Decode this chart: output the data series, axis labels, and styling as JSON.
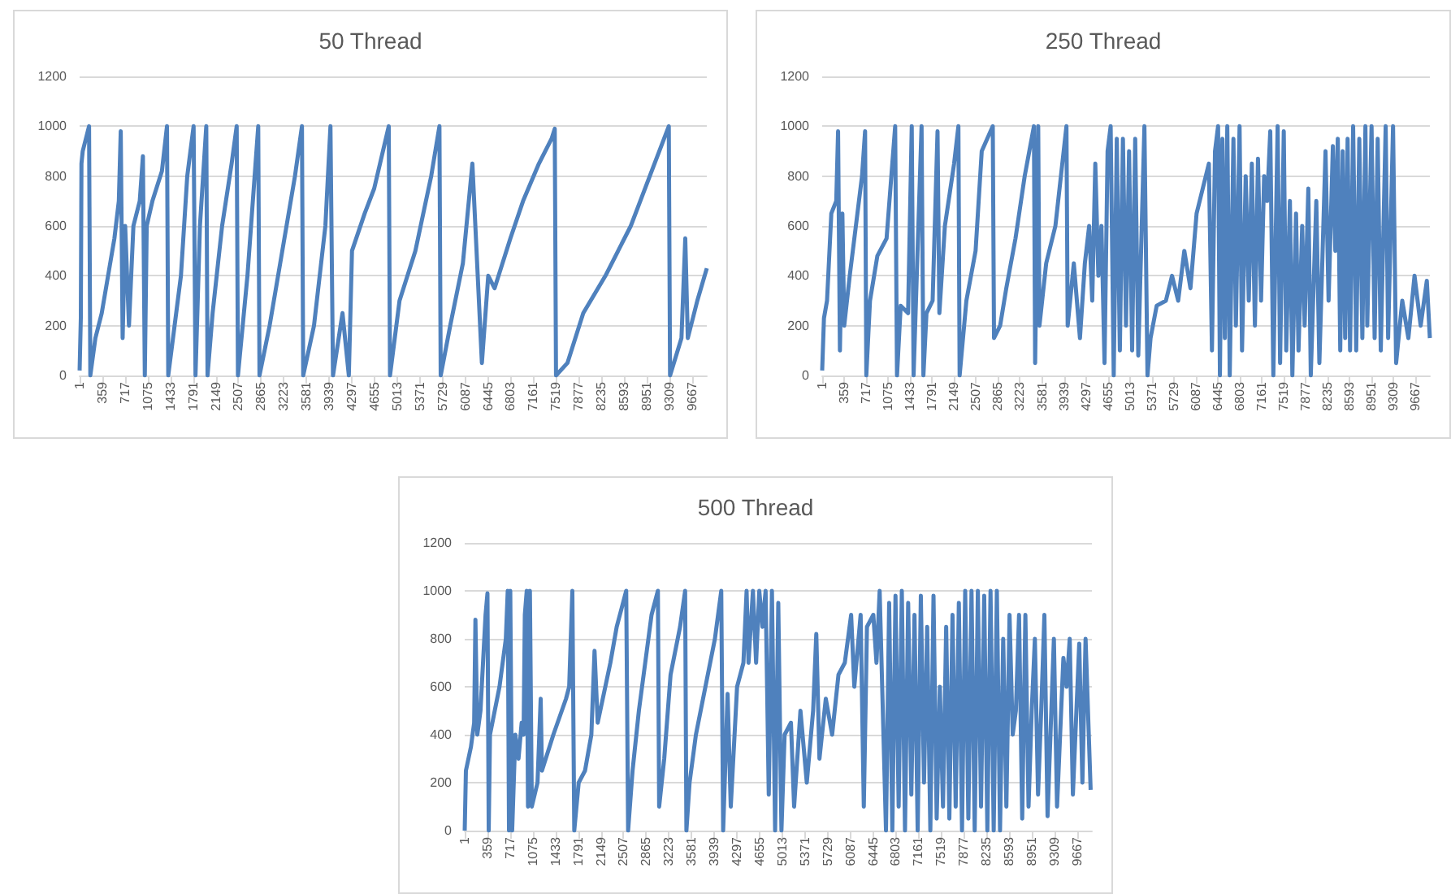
{
  "chart_data": [
    {
      "type": "line",
      "title": "50 Thread",
      "xlim": [
        1,
        9900
      ],
      "xticks": [
        1,
        359,
        717,
        1075,
        1433,
        1791,
        2149,
        2507,
        2865,
        3223,
        3581,
        3939,
        4297,
        4655,
        5013,
        5371,
        5729,
        6087,
        6445,
        6803,
        7161,
        7519,
        7877,
        8235,
        8593,
        8951,
        9309,
        9667
      ],
      "ylim": [
        0,
        1200
      ],
      "yticks": [
        0,
        200,
        400,
        600,
        800,
        1000,
        1200
      ],
      "grid": "y",
      "marker": "none",
      "line_style": "solid",
      "series": [
        {
          "color": "#4f81bd",
          "x": [
            1,
            20,
            30,
            50,
            150,
            170,
            250,
            350,
            450,
            550,
            620,
            650,
            680,
            720,
            780,
            850,
            950,
            1000,
            1030,
            1060,
            1150,
            1300,
            1380,
            1400,
            1500,
            1600,
            1700,
            1800,
            1830,
            1900,
            2000,
            2020,
            2100,
            2250,
            2400,
            2480,
            2500,
            2650,
            2820,
            2840,
            3000,
            3200,
            3400,
            3510,
            3530,
            3700,
            3880,
            3960,
            4000,
            4150,
            4250,
            4300,
            4500,
            4650,
            4880,
            4900,
            5050,
            5300,
            5550,
            5680,
            5700,
            5850,
            6050,
            6200,
            6350,
            6450,
            6550,
            6800,
            7000,
            7250,
            7450,
            7500,
            7520,
            7700,
            7950,
            8300,
            8700,
            9000,
            9300,
            9320,
            9500,
            9560,
            9600,
            9750,
            9900
          ],
          "values": [
            20,
            230,
            850,
            900,
            1000,
            0,
            150,
            250,
            400,
            550,
            700,
            980,
            150,
            600,
            200,
            600,
            700,
            880,
            0,
            600,
            700,
            820,
            1000,
            0,
            200,
            400,
            800,
            1000,
            0,
            600,
            1000,
            0,
            250,
            600,
            850,
            1000,
            0,
            400,
            1000,
            0,
            200,
            500,
            800,
            1000,
            0,
            200,
            600,
            1000,
            0,
            250,
            0,
            500,
            650,
            750,
            1000,
            0,
            300,
            500,
            800,
            1000,
            0,
            200,
            450,
            850,
            50,
            400,
            350,
            550,
            700,
            850,
            950,
            990,
            0,
            50,
            250,
            400,
            600,
            800,
            1000,
            0,
            150,
            550,
            150,
            300,
            430
          ]
        }
      ]
    },
    {
      "type": "line",
      "title": "250 Thread",
      "xlim": [
        1,
        9900
      ],
      "xticks": [
        1,
        359,
        717,
        1075,
        1433,
        1791,
        2149,
        2507,
        2865,
        3223,
        3581,
        3939,
        4297,
        4655,
        5013,
        5371,
        5729,
        6087,
        6445,
        6803,
        7161,
        7519,
        7877,
        8235,
        8593,
        8951,
        9309,
        9667
      ],
      "ylim": [
        0,
        1200
      ],
      "yticks": [
        0,
        200,
        400,
        600,
        800,
        1000,
        1200
      ],
      "grid": "y",
      "marker": "none",
      "line_style": "solid",
      "series": [
        {
          "color": "#4f81bd",
          "x": [
            1,
            30,
            80,
            150,
            230,
            260,
            290,
            330,
            360,
            450,
            550,
            650,
            700,
            720,
            780,
            900,
            1050,
            1190,
            1220,
            1280,
            1400,
            1460,
            1490,
            1620,
            1650,
            1700,
            1800,
            1880,
            1910,
            2000,
            2150,
            2220,
            2240,
            2350,
            2500,
            2600,
            2780,
            2800,
            2900,
            3000,
            3150,
            3300,
            3450,
            3470,
            3520,
            3540,
            3650,
            3800,
            3980,
            4000,
            4100,
            4200,
            4280,
            4350,
            4400,
            4450,
            4500,
            4550,
            4600,
            4650,
            4700,
            4750,
            4800,
            4850,
            4900,
            4950,
            5000,
            5050,
            5100,
            5150,
            5250,
            5300,
            5350,
            5450,
            5600,
            5700,
            5800,
            5900,
            6000,
            6100,
            6200,
            6300,
            6350,
            6400,
            6450,
            6480,
            6520,
            6560,
            6600,
            6640,
            6700,
            6740,
            6800,
            6840,
            6900,
            6950,
            7000,
            7050,
            7100,
            7150,
            7200,
            7250,
            7300,
            7350,
            7420,
            7460,
            7520,
            7560,
            7620,
            7660,
            7720,
            7760,
            7820,
            7860,
            7920,
            7960,
            8050,
            8100,
            8200,
            8250,
            8320,
            8360,
            8400,
            8440,
            8480,
            8520,
            8560,
            8600,
            8650,
            8700,
            8750,
            8800,
            8850,
            8880,
            8950,
            9000,
            9050,
            9100,
            9180,
            9220,
            9300,
            9350,
            9450,
            9550,
            9650,
            9750,
            9850,
            9900
          ],
          "values": [
            20,
            230,
            300,
            650,
            700,
            980,
            100,
            650,
            200,
            400,
            600,
            800,
            980,
            0,
            300,
            480,
            550,
            1000,
            0,
            280,
            250,
            1000,
            0,
            1000,
            0,
            250,
            300,
            980,
            250,
            600,
            850,
            1000,
            0,
            300,
            500,
            900,
            1000,
            150,
            200,
            350,
            550,
            800,
            1000,
            50,
            1000,
            200,
            450,
            600,
            1000,
            200,
            450,
            150,
            450,
            600,
            300,
            850,
            400,
            600,
            50,
            900,
            1000,
            0,
            950,
            100,
            950,
            200,
            900,
            100,
            950,
            80,
            1000,
            0,
            150,
            280,
            300,
            400,
            300,
            500,
            350,
            650,
            750,
            850,
            100,
            900,
            1000,
            0,
            950,
            150,
            1000,
            0,
            950,
            200,
            1000,
            100,
            800,
            300,
            850,
            200,
            870,
            300,
            800,
            700,
            980,
            0,
            1000,
            50,
            980,
            100,
            700,
            0,
            650,
            100,
            600,
            200,
            750,
            0,
            700,
            50,
            900,
            300,
            920,
            500,
            950,
            100,
            900,
            150,
            950,
            100,
            1000,
            100,
            950,
            150,
            1000,
            200,
            1000,
            150,
            950,
            100,
            1000,
            150,
            1000,
            50,
            300,
            150,
            400,
            200,
            380,
            150
          ]
        }
      ]
    },
    {
      "type": "line",
      "title": "500 Thread",
      "xlim": [
        1,
        9900
      ],
      "xticks": [
        1,
        359,
        717,
        1075,
        1433,
        1791,
        2149,
        2507,
        2865,
        3223,
        3581,
        3939,
        4297,
        4655,
        5013,
        5371,
        5729,
        6087,
        6445,
        6803,
        7161,
        7519,
        7877,
        8235,
        8593,
        8951,
        9309,
        9667
      ],
      "ylim": [
        0,
        1200
      ],
      "yticks": [
        0,
        200,
        400,
        600,
        800,
        1000,
        1200
      ],
      "grid": "y",
      "marker": "none",
      "line_style": "solid",
      "series": [
        {
          "color": "#4f81bd",
          "x": [
            1,
            20,
            100,
            150,
            170,
            200,
            250,
            330,
            360,
            380,
            400,
            550,
            650,
            680,
            700,
            720,
            750,
            800,
            850,
            900,
            930,
            950,
            980,
            1000,
            1030,
            1060,
            1150,
            1200,
            1220,
            1400,
            1600,
            1650,
            1700,
            1730,
            1800,
            1900,
            2000,
            2050,
            2100,
            2300,
            2400,
            2550,
            2580,
            2650,
            2750,
            2850,
            2950,
            3050,
            3070,
            3150,
            3250,
            3400,
            3480,
            3500,
            3550,
            3650,
            3800,
            3950,
            4050,
            4080,
            4150,
            4200,
            4300,
            4400,
            4450,
            4480,
            4550,
            4600,
            4650,
            4700,
            4750,
            4800,
            4850,
            4900,
            4950,
            5000,
            5050,
            5150,
            5200,
            5300,
            5400,
            5500,
            5550,
            5600,
            5700,
            5800,
            5900,
            6000,
            6100,
            6150,
            6250,
            6300,
            6350,
            6450,
            6500,
            6550,
            6650,
            6700,
            6750,
            6800,
            6850,
            6900,
            6950,
            7000,
            7050,
            7100,
            7150,
            7200,
            7250,
            7300,
            7350,
            7400,
            7450,
            7500,
            7550,
            7600,
            7650,
            7700,
            7750,
            7800,
            7850,
            7900,
            7950,
            8000,
            8050,
            8100,
            8150,
            8200,
            8250,
            8300,
            8350,
            8400,
            8450,
            8500,
            8550,
            8600,
            8650,
            8700,
            8750,
            8800,
            8850,
            8900,
            8950,
            9000,
            9050,
            9100,
            9150,
            9200,
            9300,
            9350,
            9450,
            9500,
            9550,
            9600,
            9700,
            9750,
            9800,
            9880
          ],
          "values": [
            0,
            250,
            350,
            450,
            880,
            400,
            500,
            900,
            990,
            0,
            400,
            600,
            800,
            1000,
            0,
            1000,
            0,
            400,
            300,
            450,
            400,
            900,
            1000,
            100,
            1000,
            100,
            200,
            550,
            250,
            400,
            550,
            600,
            1000,
            0,
            200,
            250,
            400,
            750,
            450,
            700,
            850,
            1000,
            0,
            250,
            500,
            700,
            900,
            1000,
            100,
            300,
            650,
            850,
            1000,
            0,
            200,
            400,
            600,
            800,
            1000,
            0,
            570,
            100,
            600,
            700,
            1000,
            700,
            1000,
            700,
            1000,
            850,
            1000,
            150,
            1000,
            0,
            950,
            0,
            400,
            450,
            100,
            500,
            200,
            500,
            820,
            300,
            550,
            400,
            650,
            700,
            900,
            600,
            900,
            100,
            850,
            900,
            700,
            1000,
            0,
            950,
            0,
            980,
            100,
            1000,
            0,
            950,
            150,
            900,
            0,
            980,
            200,
            850,
            0,
            980,
            50,
            600,
            100,
            850,
            50,
            900,
            100,
            950,
            0,
            1000,
            50,
            1000,
            0,
            1000,
            100,
            980,
            0,
            1000,
            0,
            1000,
            0,
            800,
            100,
            900,
            400,
            500,
            900,
            50,
            900,
            100,
            500,
            800,
            150,
            500,
            900,
            60,
            800,
            100,
            720,
            600,
            800,
            150,
            780,
            200,
            800,
            170
          ]
        }
      ]
    }
  ]
}
